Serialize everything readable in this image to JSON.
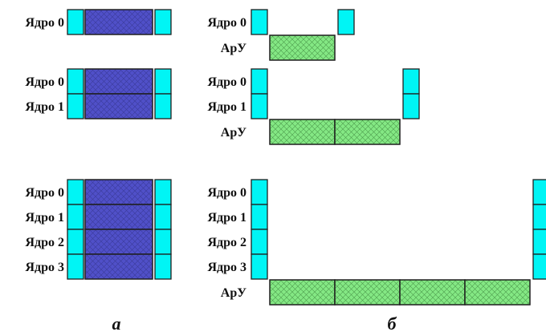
{
  "colors": {
    "core": "#00f5f5",
    "main": "#5050c8",
    "apu": "#84e884",
    "outline": "#202020",
    "hatch": "#3a3a9a",
    "hatch_apu": "#4c9c4c"
  },
  "labels": {
    "core": [
      "Ядро 0",
      "Ядро 1",
      "Ядро 2",
      "Ядро 3"
    ],
    "apu": "АрУ"
  },
  "captions": {
    "a": "а",
    "b": "б"
  },
  "scenarios": [
    {
      "cores": 1,
      "apu_blocks": 1
    },
    {
      "cores": 2,
      "apu_blocks": 2
    },
    {
      "cores": 4,
      "apu_blocks": 4
    }
  ]
}
